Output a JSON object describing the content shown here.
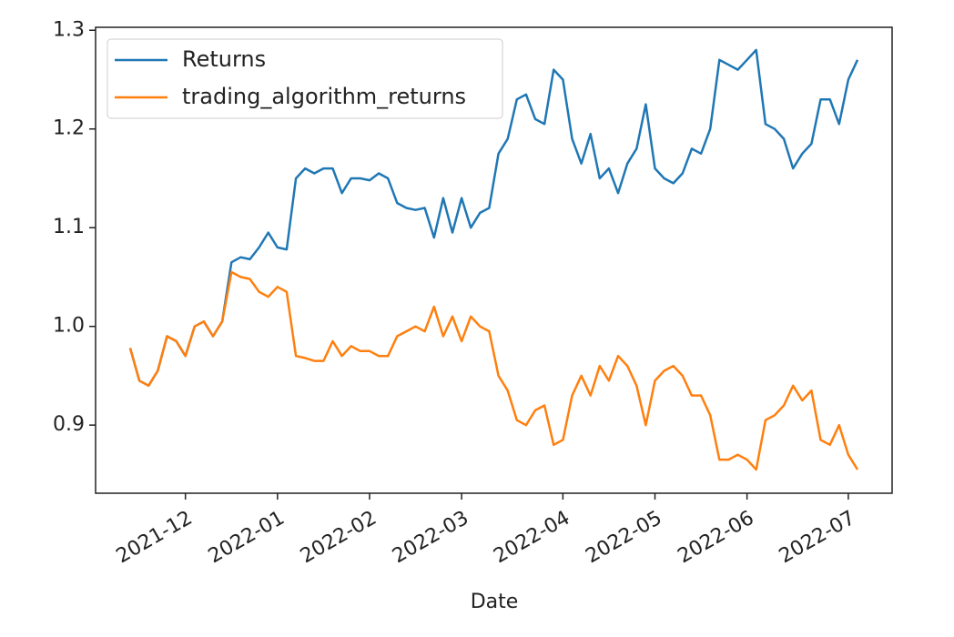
{
  "chart_data": {
    "type": "line",
    "xlabel": "Date",
    "categories": [
      null,
      null,
      null,
      null,
      null,
      null,
      "2021-12",
      null,
      null,
      null,
      null,
      null,
      null,
      null,
      null,
      null,
      "2022-01",
      null,
      null,
      null,
      null,
      null,
      null,
      null,
      null,
      null,
      "2022-02",
      null,
      null,
      null,
      null,
      null,
      null,
      null,
      null,
      null,
      "2022-03",
      null,
      null,
      null,
      null,
      null,
      null,
      null,
      null,
      null,
      null,
      "2022-04",
      null,
      null,
      null,
      null,
      null,
      null,
      null,
      null,
      null,
      "2022-05",
      null,
      null,
      null,
      null,
      null,
      null,
      null,
      null,
      null,
      "2022-06",
      null,
      null,
      null,
      null,
      null,
      null,
      null,
      null,
      null,
      null,
      "2022-07",
      null
    ],
    "series": [
      {
        "name": "Returns",
        "color": "#1f77b4",
        "values": [
          0.978,
          0.945,
          0.94,
          0.955,
          0.99,
          0.985,
          0.97,
          1.0,
          1.005,
          0.99,
          1.005,
          1.065,
          1.07,
          1.068,
          1.08,
          1.095,
          1.08,
          1.078,
          1.15,
          1.16,
          1.155,
          1.16,
          1.16,
          1.135,
          1.15,
          1.15,
          1.148,
          1.155,
          1.15,
          1.125,
          1.12,
          1.118,
          1.12,
          1.09,
          1.13,
          1.095,
          1.13,
          1.1,
          1.115,
          1.12,
          1.175,
          1.19,
          1.23,
          1.235,
          1.21,
          1.205,
          1.26,
          1.25,
          1.19,
          1.165,
          1.195,
          1.15,
          1.16,
          1.135,
          1.165,
          1.18,
          1.225,
          1.16,
          1.15,
          1.145,
          1.155,
          1.18,
          1.175,
          1.2,
          1.27,
          1.265,
          1.26,
          1.27,
          1.28,
          1.205,
          1.2,
          1.19,
          1.16,
          1.175,
          1.185,
          1.23,
          1.23,
          1.205,
          1.25,
          1.27
        ]
      },
      {
        "name": "trading_algorithm_returns",
        "color": "#ff7f0e",
        "values": [
          0.978,
          0.945,
          0.94,
          0.955,
          0.99,
          0.985,
          0.97,
          1.0,
          1.005,
          0.99,
          1.005,
          1.055,
          1.05,
          1.048,
          1.035,
          1.03,
          1.04,
          1.035,
          0.97,
          0.968,
          0.965,
          0.965,
          0.985,
          0.97,
          0.98,
          0.975,
          0.975,
          0.97,
          0.97,
          0.99,
          0.995,
          1.0,
          0.995,
          1.02,
          0.99,
          1.01,
          0.985,
          1.01,
          1.0,
          0.995,
          0.95,
          0.935,
          0.905,
          0.9,
          0.915,
          0.92,
          0.88,
          0.885,
          0.93,
          0.95,
          0.93,
          0.96,
          0.945,
          0.97,
          0.96,
          0.94,
          0.9,
          0.945,
          0.955,
          0.96,
          0.95,
          0.93,
          0.93,
          0.91,
          0.865,
          0.865,
          0.87,
          0.865,
          0.855,
          0.905,
          0.91,
          0.92,
          0.94,
          0.925,
          0.935,
          0.885,
          0.88,
          0.9,
          0.87,
          0.855
        ]
      }
    ],
    "ylim": [
      0.831,
      1.303
    ],
    "yticks": [
      0.9,
      {
        "value": 1,
        "label": "1.0"
      },
      1.1,
      1.2,
      1.3
    ],
    "legend": "upper left",
    "grid": false
  }
}
